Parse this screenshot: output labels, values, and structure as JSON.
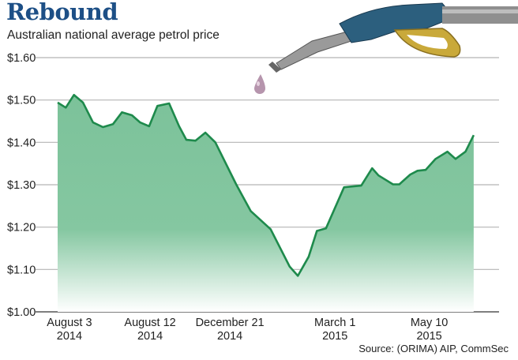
{
  "header": {
    "title": "Rebound",
    "subtitle": "Australian national average petrol price"
  },
  "source": "Source:  (ORIMA) AIP, CommSec",
  "colors": {
    "title": "#1d4f86",
    "line": "#1e8a4c",
    "fill": "#7cc29a",
    "grid": "#b5b5b5",
    "drop": "#b695ad"
  },
  "chart_data": {
    "type": "area",
    "title": "Rebound",
    "subtitle": "Australian national average petrol price",
    "xlabel": "",
    "ylabel": "",
    "ylim": [
      1.0,
      1.6
    ],
    "grid": true,
    "y_ticks": [
      {
        "value": 1.6,
        "label": "$1.60"
      },
      {
        "value": 1.5,
        "label": "$1.50"
      },
      {
        "value": 1.4,
        "label": "$1.40"
      },
      {
        "value": 1.3,
        "label": "$1.30"
      },
      {
        "value": 1.2,
        "label": "$1.20"
      },
      {
        "value": 1.1,
        "label": "$1.10"
      },
      {
        "value": 1.0,
        "label": "$1.00"
      }
    ],
    "x_unit": "weeks since start",
    "xlim": [
      0,
      46
    ],
    "x_ticks": [
      {
        "value": 1.3,
        "line1": "August 3",
        "line2": "2014"
      },
      {
        "value": 10.2,
        "line1": "August 12",
        "line2": "2014"
      },
      {
        "value": 19,
        "line1": "December 21",
        "line2": "2014"
      },
      {
        "value": 30.6,
        "line1": "March 1",
        "line2": "2015"
      },
      {
        "value": 41,
        "line1": "May 10",
        "line2": "2015"
      }
    ],
    "series": [
      {
        "name": "Average petrol price",
        "points": [
          [
            0,
            1.494
          ],
          [
            0.9,
            1.482
          ],
          [
            1.8,
            1.512
          ],
          [
            2.8,
            1.494
          ],
          [
            3.9,
            1.447
          ],
          [
            5.0,
            1.436
          ],
          [
            6.1,
            1.443
          ],
          [
            7.1,
            1.471
          ],
          [
            8.2,
            1.464
          ],
          [
            9.1,
            1.447
          ],
          [
            10.1,
            1.438
          ],
          [
            11.0,
            1.486
          ],
          [
            12.3,
            1.492
          ],
          [
            13.4,
            1.438
          ],
          [
            14.2,
            1.406
          ],
          [
            15.2,
            1.404
          ],
          [
            16.3,
            1.423
          ],
          [
            17.4,
            1.4
          ],
          [
            19.7,
            1.301
          ],
          [
            21.3,
            1.238
          ],
          [
            23.5,
            1.195
          ],
          [
            25.6,
            1.107
          ],
          [
            26.5,
            1.085
          ],
          [
            27.7,
            1.13
          ],
          [
            28.6,
            1.191
          ],
          [
            29.6,
            1.197
          ],
          [
            31.6,
            1.294
          ],
          [
            33.5,
            1.298
          ],
          [
            34.7,
            1.339
          ],
          [
            35.4,
            1.322
          ],
          [
            37.0,
            1.301
          ],
          [
            37.7,
            1.301
          ],
          [
            38.9,
            1.324
          ],
          [
            39.7,
            1.333
          ],
          [
            40.6,
            1.335
          ],
          [
            41.7,
            1.361
          ],
          [
            43.0,
            1.378
          ],
          [
            43.9,
            1.361
          ],
          [
            45.0,
            1.378
          ],
          [
            45.9,
            1.417
          ]
        ]
      }
    ]
  }
}
